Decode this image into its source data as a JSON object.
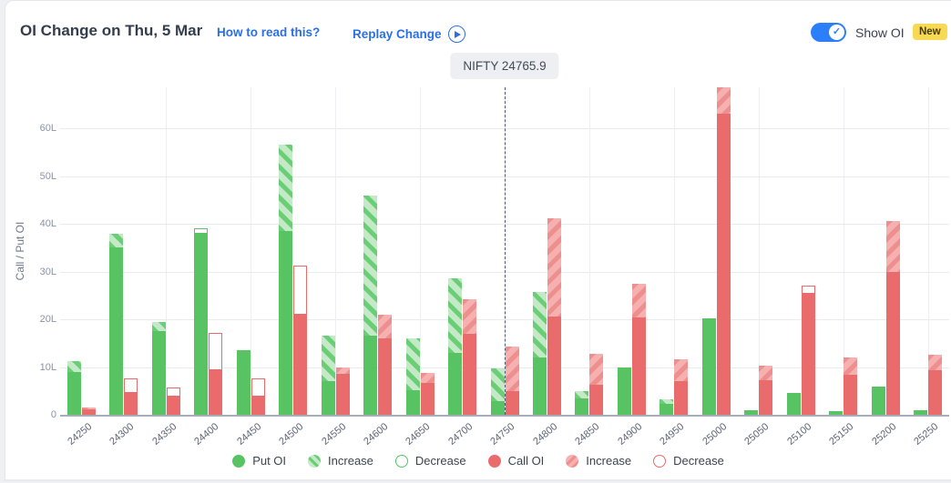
{
  "header": {
    "title": "OI Change on Thu, 5 Mar",
    "how_to_read_label": "How to read this?",
    "replay_label": "Replay Change",
    "show_oi_label": "Show OI",
    "new_badge": "New",
    "toggle_state": "on"
  },
  "marker": {
    "label": "NIFTY 24765.9",
    "value": 24765.9
  },
  "colors": {
    "put": "#57c363",
    "put_increase_bg": "#c3e9c6",
    "put_increase_stripe": "#69ce75",
    "call": "#e96b6b",
    "call_increase_bg": "#f6b0b0",
    "call_increase_stripe": "#ee8f8f",
    "link_blue": "#2b6fe3",
    "toggle_blue": "#2d7ff9",
    "badge_yellow": "#f7d954"
  },
  "chart_data": {
    "type": "bar",
    "title": "OI Change on Thu, 5 Mar",
    "xlabel": "Strike",
    "ylabel": "Call / Put OI",
    "unit": "L (lakh)",
    "ylim": [
      0,
      68.5
    ],
    "y_ticks": [
      "0",
      "10L",
      "20L",
      "30L",
      "40L",
      "50L",
      "60L"
    ],
    "grid": true,
    "legend_position": "bottom",
    "marker_line": {
      "label": "NIFTY 24765.9",
      "at_category": "24750"
    },
    "categories": [
      "24250",
      "24300",
      "24350",
      "24400",
      "24450",
      "24500",
      "24550",
      "24600",
      "24650",
      "24700",
      "24750",
      "24800",
      "24850",
      "24900",
      "24950",
      "25000",
      "25050",
      "25100",
      "25150",
      "25200",
      "25250"
    ],
    "series": [
      {
        "name": "Put OI",
        "values": [
          9,
          35,
          17.5,
          38,
          13.5,
          38.5,
          7,
          16.5,
          5.2,
          13,
          2.8,
          12,
          3.5,
          10,
          2.2,
          20.2,
          1,
          4.2,
          0.8,
          6,
          1
        ]
      },
      {
        "name": "Put Increase",
        "values": [
          2.3,
          3,
          2,
          0,
          0,
          18,
          9.5,
          29.5,
          10.8,
          15.5,
          6.9,
          13.7,
          1.5,
          0,
          1,
          0,
          0,
          0,
          0,
          0,
          0
        ]
      },
      {
        "name": "Put Decrease",
        "values": [
          0,
          0,
          0,
          1,
          0,
          0,
          0,
          0,
          0,
          0,
          0,
          0,
          0,
          0,
          0,
          0,
          0,
          0.4,
          0,
          0,
          0
        ]
      },
      {
        "name": "Call OI",
        "values": [
          1.1,
          4.6,
          3.8,
          9.3,
          3.8,
          21,
          8.5,
          16,
          6.7,
          17,
          5,
          20.6,
          6.3,
          20.4,
          7,
          63,
          7.3,
          25.4,
          8.3,
          30,
          9.3
        ]
      },
      {
        "name": "Call Increase",
        "values": [
          0.4,
          0,
          0,
          0,
          0,
          0,
          1.5,
          5,
          2,
          7.2,
          9.2,
          20.5,
          6.4,
          7,
          4.7,
          5.5,
          2.9,
          0,
          3.7,
          10.5,
          3.2
        ]
      },
      {
        "name": "Call Decrease",
        "values": [
          0,
          3,
          1.9,
          7.8,
          3.8,
          10.3,
          0,
          0,
          0,
          0,
          0,
          0,
          0,
          0,
          0,
          0,
          0,
          1.6,
          0,
          0,
          0
        ]
      }
    ],
    "legend": [
      "Put OI",
      "Increase",
      "Decrease",
      "Call OI",
      "Increase",
      "Decrease"
    ]
  }
}
